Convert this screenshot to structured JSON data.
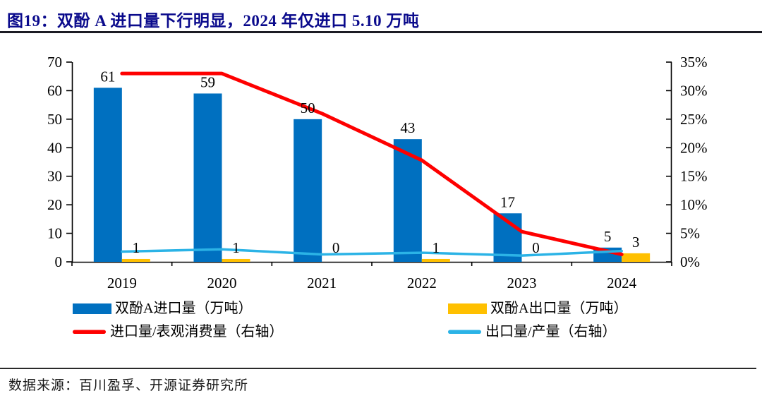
{
  "figure": {
    "title": "图19：双酚 A 进口量下行明显，2024 年仅进口 5.10 万吨",
    "source": "数据来源：百川盈孚、开源证券研究所"
  },
  "colors": {
    "title_navy": "#0A0A8C",
    "bar_blue": "#0070C0",
    "bar_yellow": "#FFC000",
    "line_red": "#FE0000",
    "line_cyan": "#2BB3E6",
    "axis_black": "#000000"
  },
  "chart_data": {
    "type": "bar",
    "subtype": "combo-bar-line",
    "categories": [
      "2019",
      "2020",
      "2021",
      "2022",
      "2023",
      "2024"
    ],
    "left_axis": {
      "min": 0,
      "max": 70,
      "step": 10,
      "tick_labels": [
        "0",
        "10",
        "20",
        "30",
        "40",
        "50",
        "60",
        "70"
      ]
    },
    "right_axis": {
      "min": 0,
      "max": 35,
      "step": 5,
      "suffix": "%",
      "tick_labels": [
        "0%",
        "5%",
        "10%",
        "15%",
        "20%",
        "25%",
        "30%",
        "35%"
      ]
    },
    "grid": "off",
    "legend_position": "bottom",
    "series": [
      {
        "name": "双酚A进口量（万吨）",
        "kind": "bar",
        "axis": "left",
        "color_key": "bar_blue",
        "values": [
          61,
          59,
          50,
          43,
          17,
          5
        ],
        "labels": [
          "61",
          "59",
          "50",
          "43",
          "17",
          "5"
        ]
      },
      {
        "name": "双酚A出口量（万吨）",
        "kind": "bar",
        "axis": "left",
        "color_key": "bar_yellow",
        "values": [
          1,
          1,
          0,
          1,
          0,
          3
        ],
        "labels": [
          "1",
          "1",
          "0",
          "1",
          "0",
          "3"
        ]
      },
      {
        "name": "进口量/表观消费量（右轴）",
        "kind": "line",
        "axis": "right",
        "color_key": "line_red",
        "values": [
          33,
          33,
          26,
          17.8,
          5.3,
          1.3
        ]
      },
      {
        "name": "出口量/产量（右轴）",
        "kind": "line",
        "axis": "right",
        "color_key": "line_cyan",
        "values": [
          1.8,
          2.2,
          1.3,
          1.6,
          1.1,
          1.9
        ]
      }
    ]
  }
}
